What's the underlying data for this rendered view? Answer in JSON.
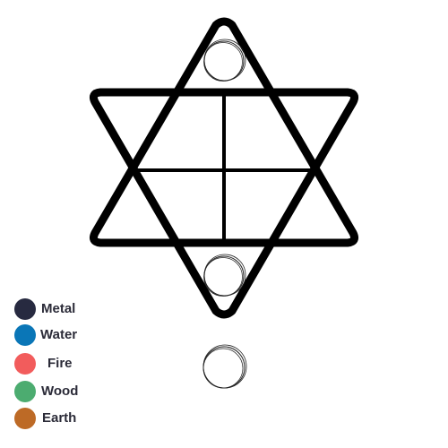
{
  "legend": {
    "items": [
      {
        "label": "Metal",
        "color": "#272a40",
        "icon": "metal-dot-icon"
      },
      {
        "label": "Water",
        "color": "#0a76b7",
        "icon": "water-dot-icon"
      },
      {
        "label": "Fire",
        "color": "#f25c5c",
        "icon": "fire-dot-icon"
      },
      {
        "label": "Wood",
        "color": "#4cac70",
        "icon": "wood-dot-icon"
      },
      {
        "label": "Earth",
        "color": "#bd6a26",
        "icon": "earth-dot-icon"
      }
    ]
  },
  "board": {
    "line_color": "#000000",
    "empty_slots": [
      "top-slot",
      "bottom-slot",
      "staging-slot"
    ]
  }
}
